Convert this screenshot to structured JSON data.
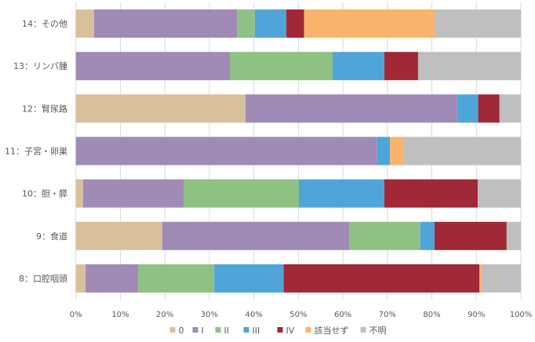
{
  "chart_data": {
    "type": "bar",
    "orientation": "horizontal",
    "stacked": "percent",
    "title": "",
    "xlabel": "",
    "ylabel": "",
    "xlim": [
      0,
      100
    ],
    "x_ticks": [
      "0%",
      "10%",
      "20%",
      "30%",
      "40%",
      "50%",
      "60%",
      "70%",
      "80%",
      "90%",
      "100%"
    ],
    "grid": true,
    "legend_position": "bottom",
    "categories": [
      "14：その他",
      "13：リンパ腫",
      "12：腎尿路",
      "11：子宮・卵巣",
      "10：胆・膵",
      "9：食道",
      "8：口腔咽頭"
    ],
    "series": [
      {
        "name": "0",
        "color": "#d9c09c",
        "values": [
          4.1,
          0,
          38.1,
          0,
          1.6,
          19.4,
          2.2
        ]
      },
      {
        "name": "I",
        "color": "#a08ab6",
        "values": [
          32.1,
          34.6,
          47.6,
          67.7,
          22.6,
          42.0,
          11.8
        ]
      },
      {
        "name": "II",
        "color": "#8fc183",
        "values": [
          4.0,
          23.1,
          0,
          0,
          25.9,
          16.0,
          17.1
        ]
      },
      {
        "name": "III",
        "color": "#4fa5d8",
        "values": [
          7.1,
          11.6,
          4.7,
          2.9,
          19.2,
          3.2,
          15.6
        ]
      },
      {
        "name": "IV",
        "color": "#a12836",
        "values": [
          4.0,
          7.6,
          4.8,
          0,
          21.0,
          16.2,
          44.0
        ]
      },
      {
        "name": "該当せず",
        "color": "#f9b36a",
        "values": [
          29.3,
          0,
          0,
          2.9,
          0,
          0,
          0.5
        ]
      },
      {
        "name": "不明",
        "color": "#bfbfbf",
        "values": [
          19.4,
          23.1,
          4.8,
          26.5,
          9.7,
          3.2,
          8.8
        ]
      }
    ]
  }
}
